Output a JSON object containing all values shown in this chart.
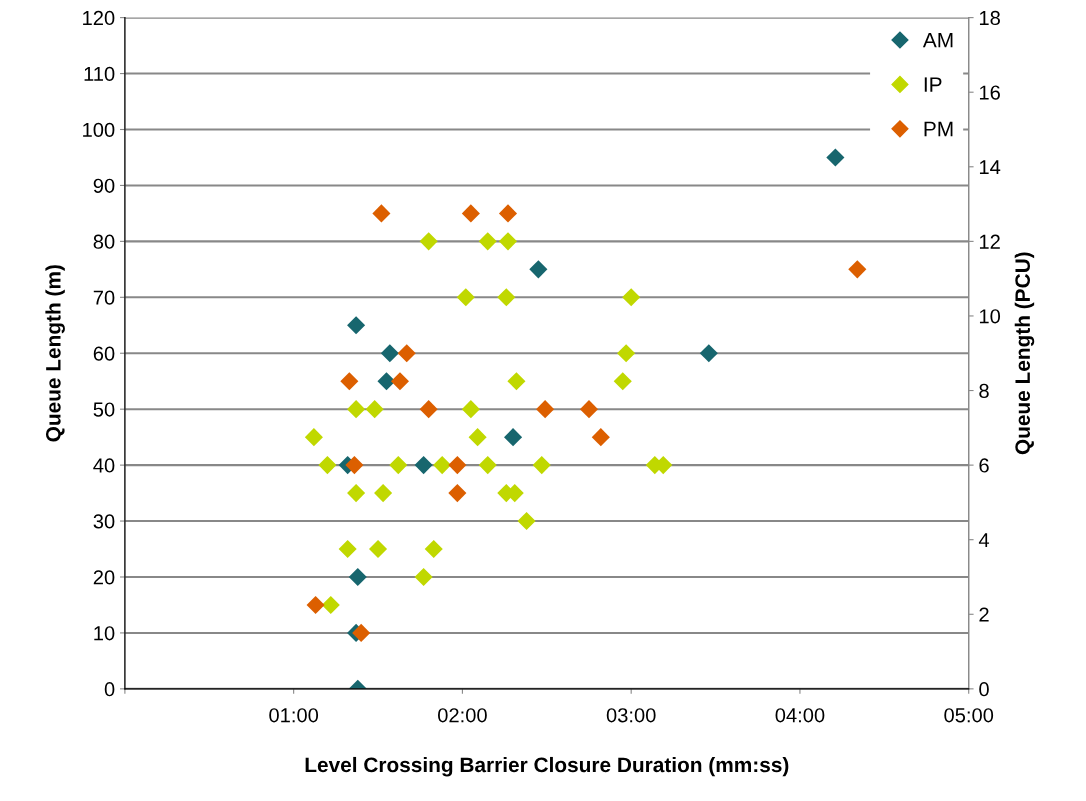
{
  "chart_data": {
    "type": "scatter",
    "xlabel": "Level Crossing Barrier Closure Duration (mm:ss)",
    "ylabel": "Queue Length (m)",
    "y2label": "Queue Length (PCU)",
    "series": [
      {
        "name": "AM",
        "color": "#17666e",
        "x": [
          4.21,
          2.45,
          1.37,
          1.57,
          3.46,
          1.55,
          2.3,
          1.32,
          1.77,
          1.38,
          1.37,
          1.38
        ],
        "values": [
          95,
          75,
          65,
          60,
          60,
          55,
          45,
          40,
          40,
          20,
          10,
          0
        ]
      },
      {
        "name": "IP",
        "color": "#c0d800",
        "x": [
          1.8,
          2.15,
          2.27,
          2.02,
          2.26,
          3.0,
          2.97,
          2.32,
          2.95,
          1.37,
          1.48,
          2.05,
          1.12,
          2.09,
          1.2,
          1.62,
          1.88,
          2.15,
          2.47,
          3.14,
          3.19,
          1.37,
          1.53,
          2.26,
          2.31,
          2.38,
          1.32,
          1.5,
          1.83,
          1.77,
          1.22
        ],
        "values": [
          80,
          80,
          80,
          70,
          70,
          70,
          60,
          55,
          55,
          50,
          50,
          50,
          45,
          45,
          40,
          40,
          40,
          40,
          40,
          40,
          40,
          35,
          35,
          35,
          35,
          30,
          25,
          25,
          25,
          20,
          15
        ]
      },
      {
        "name": "PM",
        "color": "#dc5f00",
        "x": [
          1.52,
          2.05,
          2.27,
          4.34,
          1.67,
          1.33,
          1.63,
          1.8,
          2.49,
          2.75,
          2.82,
          1.36,
          1.97,
          1.97,
          1.13,
          1.4
        ],
        "values": [
          85,
          85,
          85,
          75,
          60,
          55,
          55,
          50,
          50,
          50,
          45,
          40,
          40,
          35,
          15,
          10
        ]
      }
    ],
    "xlim": [
      0,
      5
    ],
    "xticks": [
      {
        "value": 0,
        "label": null
      },
      {
        "value": 1,
        "label": "01:00"
      },
      {
        "value": 2,
        "label": "02:00"
      },
      {
        "value": 3,
        "label": "03:00"
      },
      {
        "value": 4,
        "label": "04:00"
      },
      {
        "value": 5,
        "label": "05:00"
      }
    ],
    "ylim": [
      0,
      120
    ],
    "yticks": [
      0,
      10,
      20,
      30,
      40,
      50,
      60,
      70,
      80,
      90,
      100,
      110,
      120
    ],
    "y2lim": [
      0,
      18
    ],
    "y2ticks": [
      0,
      2,
      4,
      6,
      8,
      10,
      12,
      14,
      16,
      18
    ],
    "grid": "y",
    "legend": "top right",
    "marker": "diamond"
  }
}
